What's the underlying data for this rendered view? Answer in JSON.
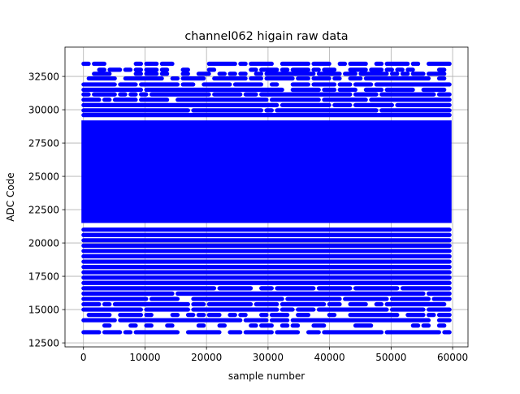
{
  "chart_data": {
    "type": "scatter",
    "title": "channel062 higain raw data",
    "xlabel": "sample number",
    "ylabel": "ADC Code",
    "xlim": [
      -3000,
      62500
    ],
    "ylim": [
      12200,
      34700
    ],
    "x_ticks": [
      0,
      10000,
      20000,
      30000,
      40000,
      50000,
      60000
    ],
    "y_ticks": [
      12500,
      15000,
      17500,
      20000,
      22500,
      25000,
      27500,
      30000,
      32500
    ],
    "x_tick_labels": [
      "0",
      "10000",
      "20000",
      "30000",
      "40000",
      "50000",
      "60000"
    ],
    "y_tick_labels": [
      "12500",
      "15000",
      "17500",
      "20000",
      "22500",
      "25000",
      "27500",
      "30000",
      "32500"
    ],
    "grid": true,
    "marker_color": "#0000ff",
    "sample_range": [
      0,
      59500
    ],
    "solid_band": [
      21500,
      29200
    ],
    "discrete_levels": [
      {
        "y": 13300,
        "density": 0.8
      },
      {
        "y": 13800,
        "density": 0.35
      },
      {
        "y": 14200,
        "density": 0.9
      },
      {
        "y": 14600,
        "density": 0.6
      },
      {
        "y": 15000,
        "density": 0.95
      },
      {
        "y": 15400,
        "density": 0.75
      },
      {
        "y": 15800,
        "density": 0.9
      },
      {
        "y": 16200,
        "density": 0.95
      },
      {
        "y": 16600,
        "density": 0.95
      },
      {
        "y": 17000,
        "density": 0.98
      },
      {
        "y": 17400,
        "density": 0.95
      },
      {
        "y": 17800,
        "density": 1.0
      },
      {
        "y": 18200,
        "density": 1.0
      },
      {
        "y": 18600,
        "density": 1.0
      },
      {
        "y": 19000,
        "density": 1.0
      },
      {
        "y": 19400,
        "density": 1.0
      },
      {
        "y": 19800,
        "density": 1.0
      },
      {
        "y": 20200,
        "density": 1.0
      },
      {
        "y": 20600,
        "density": 1.0
      },
      {
        "y": 21000,
        "density": 1.0
      },
      {
        "y": 29600,
        "density": 1.0
      },
      {
        "y": 29950,
        "density": 0.95
      },
      {
        "y": 30350,
        "density": 0.95
      },
      {
        "y": 30750,
        "density": 0.9
      },
      {
        "y": 31150,
        "density": 0.9
      },
      {
        "y": 31500,
        "density": 0.85
      },
      {
        "y": 31900,
        "density": 0.8
      },
      {
        "y": 32350,
        "density": 0.7
      },
      {
        "y": 32700,
        "density": 0.55
      },
      {
        "y": 33000,
        "density": 0.45
      },
      {
        "y": 33450,
        "density": 0.6
      }
    ]
  }
}
